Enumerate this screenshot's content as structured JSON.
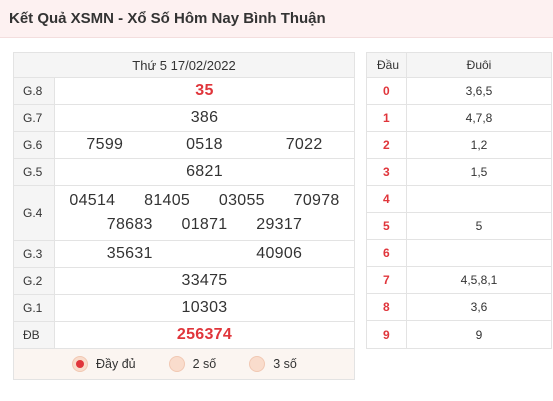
{
  "header": {
    "title": "Kết Quả XSMN - Xổ Số Hôm Nay Bình Thuận"
  },
  "results": {
    "date": "Thứ 5 17/02/2022",
    "prizes": [
      {
        "label": "G.8",
        "values": [
          "35"
        ],
        "highlight": true
      },
      {
        "label": "G.7",
        "values": [
          "386"
        ]
      },
      {
        "label": "G.6",
        "values": [
          "7599",
          "0518",
          "7022"
        ]
      },
      {
        "label": "G.5",
        "values": [
          "6821"
        ]
      },
      {
        "label": "G.4",
        "values": [
          "04514",
          "81405",
          "03055",
          "70978",
          "78683",
          "01871",
          "29317"
        ]
      },
      {
        "label": "G.3",
        "values": [
          "35631",
          "40906"
        ]
      },
      {
        "label": "G.2",
        "values": [
          "33475"
        ]
      },
      {
        "label": "G.1",
        "values": [
          "10303"
        ]
      },
      {
        "label": "ĐB",
        "values": [
          "256374"
        ],
        "highlight": true
      }
    ],
    "options": [
      {
        "label": "Đầy đủ",
        "checked": true
      },
      {
        "label": "2 số",
        "checked": false
      },
      {
        "label": "3 số",
        "checked": false
      }
    ]
  },
  "loto": {
    "head_label": "Đầu",
    "tail_label": "Đuôi",
    "rows": [
      {
        "head": "0",
        "tail": "3,6,5"
      },
      {
        "head": "1",
        "tail": "4,7,8"
      },
      {
        "head": "2",
        "tail": "1,2"
      },
      {
        "head": "3",
        "tail": "1,5"
      },
      {
        "head": "4",
        "tail": ""
      },
      {
        "head": "5",
        "tail": "5"
      },
      {
        "head": "6",
        "tail": ""
      },
      {
        "head": "7",
        "tail": "4,5,8,1"
      },
      {
        "head": "8",
        "tail": "3,6"
      },
      {
        "head": "9",
        "tail": "9"
      }
    ]
  },
  "colors": {
    "accent_red": "#e0353b",
    "header_bg": "#fdf1f1",
    "radio_bg": "#f9dccc"
  }
}
